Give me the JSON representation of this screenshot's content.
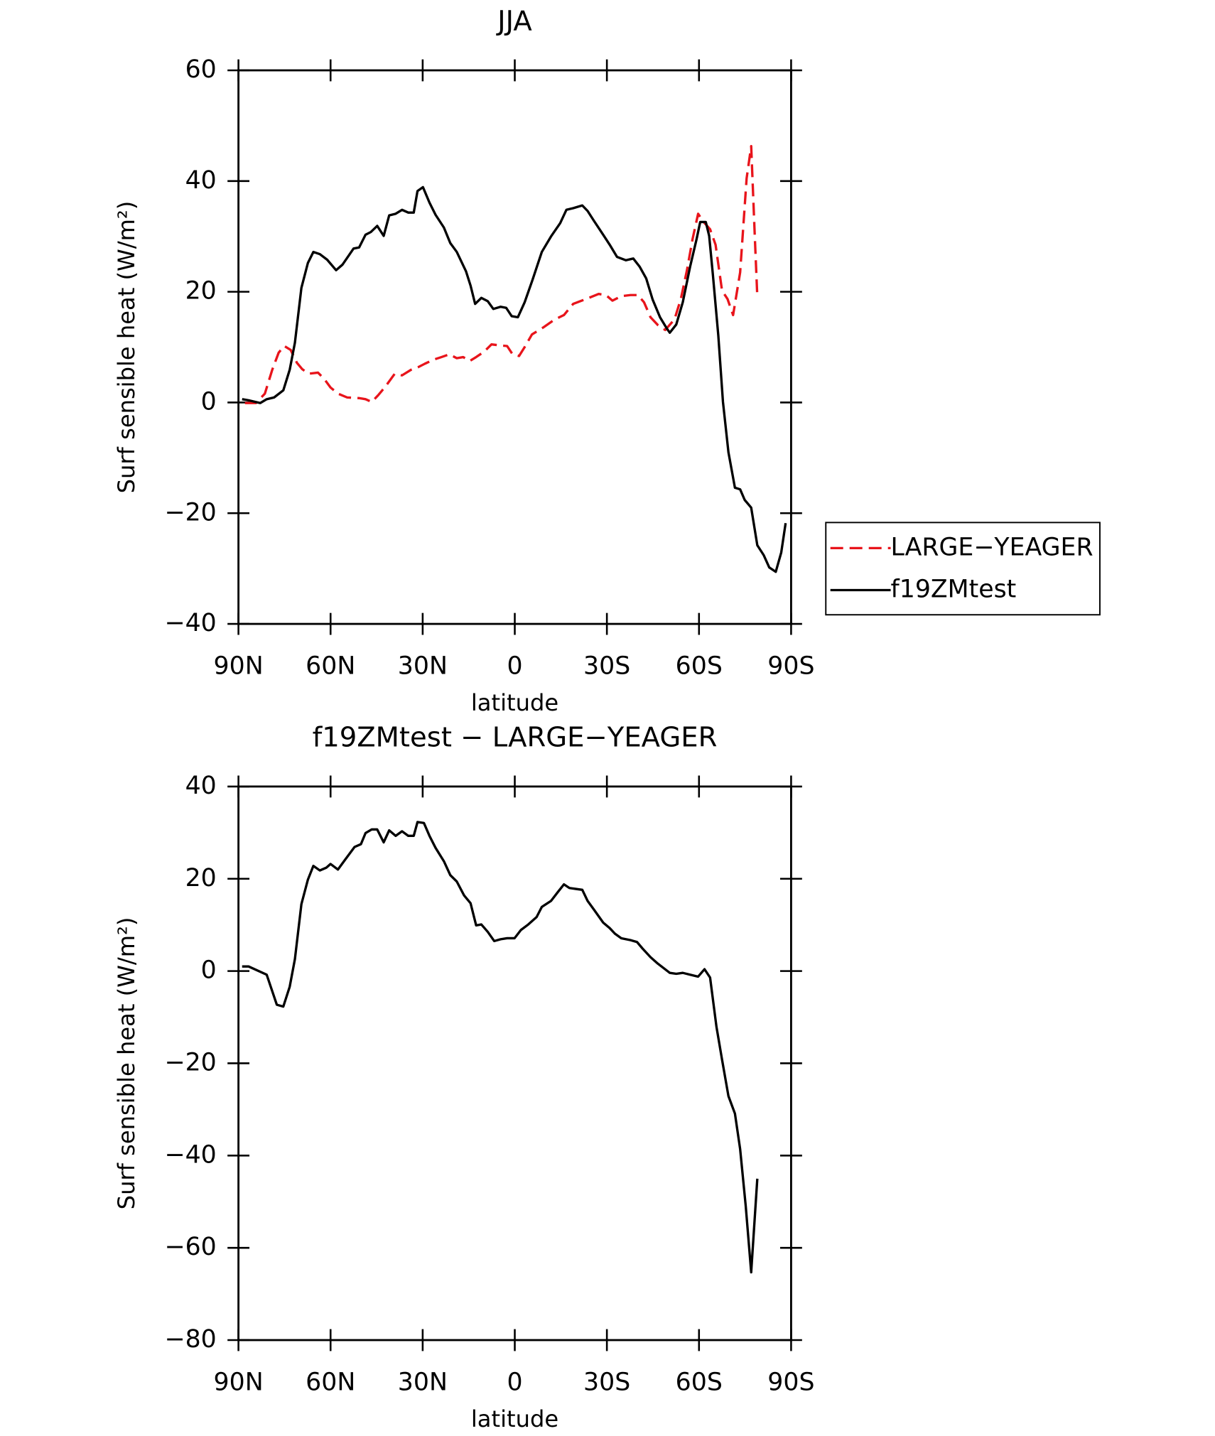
{
  "chart_data": [
    {
      "type": "line",
      "title": "JJA",
      "xlabel": "latitude",
      "ylabel": "Surf sensible heat (W/m²)",
      "xlim": [
        90,
        -90
      ],
      "xticks": [
        {
          "value": 90,
          "label": "90N"
        },
        {
          "value": 60,
          "label": "60N"
        },
        {
          "value": 30,
          "label": "30N"
        },
        0,
        {
          "value": -30,
          "label": "30S"
        },
        {
          "value": -60,
          "label": "60S"
        },
        {
          "value": -90,
          "label": "90S"
        }
      ],
      "ylim": [
        -40,
        60
      ],
      "yticks": [
        {
          "value": -40,
          "label": "−40"
        },
        {
          "value": -20,
          "label": "−20"
        },
        0,
        20,
        40,
        60
      ],
      "legend": "outside right",
      "series": [
        {
          "name": "LARGE−YEAGER",
          "color": "#e8141b",
          "linestyle": "dashed",
          "x": [
            87.9,
            84.3,
            81.4,
            79.0,
            76.9,
            75.1,
            73.0,
            71.0,
            69.2,
            67.1,
            64.1,
            62.0,
            60.0,
            57.6,
            54.6,
            50.7,
            48.6,
            46.6,
            44.5,
            42.1,
            39.1,
            36.7,
            33.8,
            31.4,
            29.3,
            26.6,
            23.9,
            21.3,
            18.9,
            16.8,
            14.7,
            12.6,
            9.9,
            7.6,
            4.6,
            2.5,
            0.7,
            -1.4,
            -3.2,
            -5.6,
            -9.4,
            -13.0,
            -16.0,
            -19.0,
            -22.8,
            -27.3,
            -29.7,
            -31.8,
            -34.7,
            -37.7,
            -40.1,
            -42.1,
            -44.2,
            -46.6,
            -49.0,
            -52.0,
            -54.1,
            -56.1,
            -57.9,
            -59.7,
            -61.5,
            -63.6,
            -65.4,
            -67.5,
            -69.3,
            -71.1,
            -73.4,
            -75.5,
            -77.0,
            -78.2,
            -79.0
          ],
          "values": [
            -0.1,
            -0.1,
            1.6,
            5.9,
            9.0,
            10.2,
            9.5,
            7.2,
            6.0,
            5.2,
            5.4,
            4.2,
            2.7,
            1.6,
            0.9,
            0.8,
            0.6,
            0.1,
            1.3,
            2.9,
            5.2,
            4.9,
            5.9,
            6.4,
            7.0,
            7.7,
            8.2,
            8.7,
            8.0,
            8.2,
            7.5,
            8.2,
            9.2,
            10.5,
            10.3,
            10.2,
            8.7,
            8.4,
            10.0,
            12.3,
            13.6,
            15.0,
            15.8,
            17.8,
            18.6,
            19.6,
            19.4,
            18.4,
            19.2,
            19.4,
            19.4,
            18.1,
            15.4,
            14.0,
            13.1,
            15.0,
            18.7,
            24.0,
            29.5,
            34.1,
            32.6,
            31.3,
            28.5,
            20.2,
            18.7,
            15.8,
            23.5,
            40.5,
            46.3,
            29.8,
            19.1
          ]
        },
        {
          "name": "f19ZMtest",
          "color": "#000000",
          "linestyle": "solid",
          "x": [
            88.8,
            86.7,
            82.9,
            80.8,
            78.4,
            75.4,
            73.3,
            71.6,
            69.5,
            67.4,
            65.6,
            63.5,
            61.1,
            58.2,
            56.1,
            52.5,
            50.7,
            48.6,
            46.9,
            44.8,
            42.7,
            40.9,
            38.8,
            36.7,
            34.7,
            32.9,
            31.7,
            29.9,
            27.8,
            25.8,
            23.1,
            21.0,
            18.9,
            15.9,
            14.4,
            12.9,
            10.9,
            8.8,
            7.0,
            4.6,
            2.8,
            1.0,
            -1.0,
            -3.2,
            -5.8,
            -8.8,
            -11.8,
            -14.8,
            -16.8,
            -19.0,
            -22.0,
            -23.7,
            -25.8,
            -28.8,
            -30.9,
            -33.3,
            -36.2,
            -38.6,
            -40.7,
            -42.8,
            -44.9,
            -47.3,
            -49.6,
            -50.5,
            -52.6,
            -54.7,
            -57.1,
            -59.2,
            -60.4,
            -62.2,
            -63.3,
            -64.5,
            -66.3,
            -67.8,
            -69.6,
            -71.7,
            -73.4,
            -74.9,
            -77.0,
            -79.0,
            -81.1,
            -82.9,
            -85.0,
            -86.8,
            -88.2
          ],
          "values": [
            0.6,
            0.4,
            -0.1,
            0.6,
            0.9,
            2.2,
            5.9,
            10.8,
            20.7,
            25.2,
            27.2,
            26.8,
            25.8,
            23.9,
            24.9,
            27.8,
            28.0,
            30.3,
            30.8,
            31.9,
            30.1,
            33.8,
            34.1,
            34.8,
            34.3,
            34.3,
            38.2,
            38.9,
            36.1,
            33.9,
            31.6,
            28.8,
            27.2,
            23.7,
            21.1,
            17.8,
            18.9,
            18.3,
            16.9,
            17.3,
            17.1,
            15.6,
            15.4,
            18.1,
            22.2,
            27.2,
            30.0,
            32.4,
            34.8,
            35.1,
            35.6,
            34.6,
            32.8,
            30.3,
            28.5,
            26.3,
            25.7,
            26.0,
            24.5,
            22.4,
            18.6,
            15.4,
            13.3,
            12.6,
            14.1,
            18.1,
            24.5,
            29.5,
            32.6,
            32.6,
            30.1,
            23.2,
            12.1,
            0.1,
            -9.0,
            -15.4,
            -15.7,
            -17.6,
            -19.0,
            -25.8,
            -27.6,
            -29.8,
            -30.6,
            -27.1,
            -21.8
          ]
        }
      ]
    },
    {
      "type": "line",
      "title": "f19ZMtest − LARGE−YEAGER",
      "xlabel": "latitude",
      "ylabel": "Surf sensible heat (W/m²)",
      "xlim": [
        90,
        -90
      ],
      "xticks": [
        {
          "value": 90,
          "label": "90N"
        },
        {
          "value": 60,
          "label": "60N"
        },
        {
          "value": 30,
          "label": "30N"
        },
        0,
        {
          "value": -30,
          "label": "30S"
        },
        {
          "value": -60,
          "label": "60S"
        },
        {
          "value": -90,
          "label": "90S"
        }
      ],
      "ylim": [
        -80,
        40
      ],
      "yticks": [
        {
          "value": -80,
          "label": "−80"
        },
        {
          "value": -60,
          "label": "−60"
        },
        {
          "value": -40,
          "label": "−40"
        },
        {
          "value": -20,
          "label": "−20"
        },
        0,
        20,
        40
      ],
      "series": [
        {
          "color": "#000000",
          "linestyle": "solid",
          "x": [
            88.8,
            86.7,
            80.8,
            77.5,
            75.4,
            73.3,
            71.6,
            69.5,
            67.4,
            65.6,
            63.5,
            61.4,
            60.0,
            57.6,
            55.2,
            52.2,
            50.1,
            48.6,
            46.6,
            44.8,
            42.7,
            40.9,
            38.8,
            36.7,
            34.7,
            32.9,
            31.7,
            29.6,
            27.8,
            25.8,
            23.1,
            21.0,
            18.9,
            16.5,
            14.4,
            12.6,
            10.9,
            8.8,
            6.7,
            4.6,
            2.5,
            0.1,
            -2.0,
            -4.4,
            -7.1,
            -8.8,
            -11.8,
            -13.9,
            -16.0,
            -17.8,
            -19.9,
            -22.0,
            -23.7,
            -25.8,
            -28.8,
            -30.9,
            -32.6,
            -34.7,
            -37.7,
            -39.8,
            -41.6,
            -44.2,
            -46.6,
            -50.5,
            -52.6,
            -54.7,
            -57.1,
            -59.7,
            -61.8,
            -63.6,
            -65.7,
            -67.5,
            -69.6,
            -71.7,
            -73.4,
            -75.2,
            -77.0,
            -79.0
          ],
          "values": [
            1.0,
            1.0,
            -0.8,
            -7.3,
            -7.7,
            -3.4,
            2.6,
            14.5,
            19.8,
            22.8,
            21.8,
            22.4,
            23.2,
            22.0,
            24.2,
            26.9,
            27.5,
            29.9,
            30.7,
            30.7,
            27.9,
            30.5,
            29.3,
            30.3,
            29.3,
            29.3,
            32.3,
            32.1,
            29.3,
            26.7,
            23.8,
            20.8,
            19.4,
            16.4,
            14.7,
            9.9,
            10.1,
            8.5,
            6.5,
            6.9,
            7.1,
            7.1,
            8.9,
            10.1,
            11.7,
            13.9,
            15.2,
            17.0,
            18.8,
            18.0,
            17.8,
            17.6,
            15.2,
            13.3,
            10.5,
            9.3,
            8.1,
            7.1,
            6.7,
            6.3,
            4.9,
            3.0,
            1.6,
            -0.4,
            -0.6,
            -0.4,
            -0.8,
            -1.2,
            0.4,
            -1.4,
            -12.1,
            -19.2,
            -27.1,
            -30.9,
            -38.6,
            -50.9,
            -65.3,
            -45.0
          ]
        }
      ]
    }
  ]
}
